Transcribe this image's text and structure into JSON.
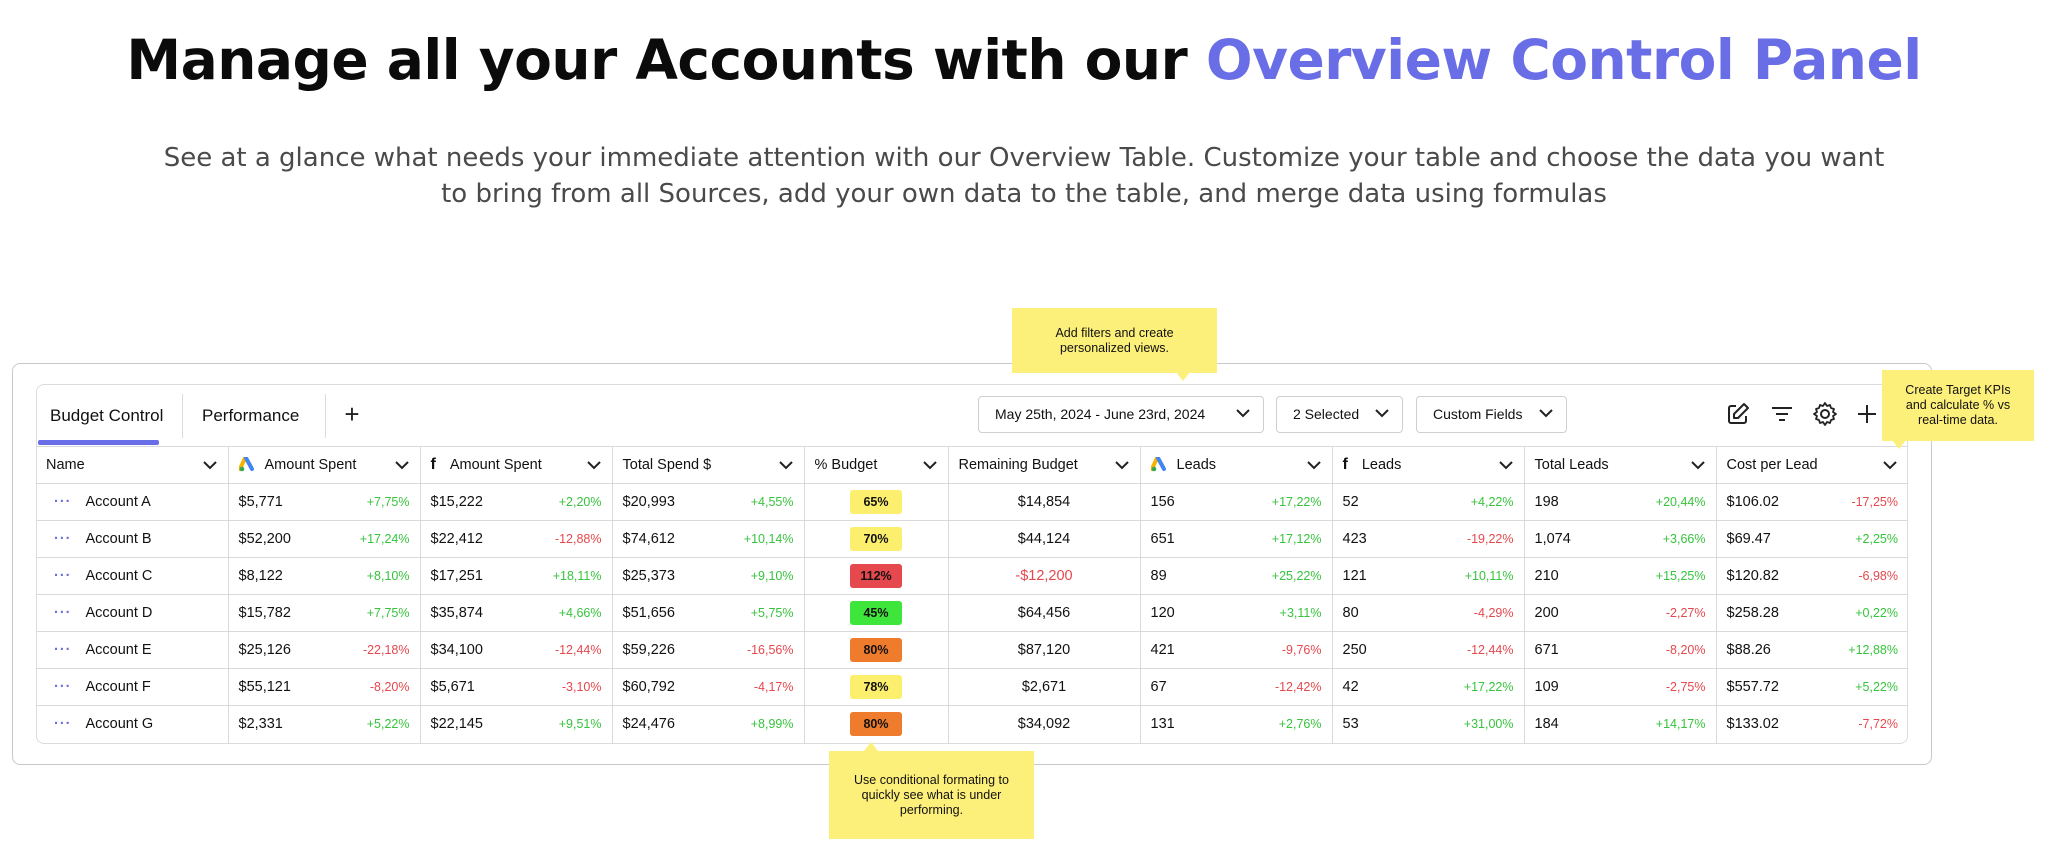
{
  "hero": {
    "title_main": "Manage all your Accounts with our ",
    "title_accent": "Overview Control Panel",
    "subtitle": "See at a glance what needs your immediate attention with our Overview Table. Customize your table and choose the data you want to bring from all Sources, add your own data to the table, and merge data using formulas"
  },
  "tabs": [
    {
      "label": "Budget Control",
      "active": true
    },
    {
      "label": "Performance",
      "active": false
    }
  ],
  "controls": {
    "date_range": "May 25th, 2024 - June 23rd, 2024",
    "selected": "2 Selected",
    "custom_fields": "Custom Fields"
  },
  "tooltips": {
    "filters": "Add filters and create personalized views.",
    "kpis": "Create Target KPIs and calculate % vs real-time data.",
    "formatting": "Use conditional formating to quickly see what is under performing."
  },
  "columns": [
    {
      "label": "Name",
      "icon": ""
    },
    {
      "label": "Amount Spent",
      "icon": "google-ads-icon"
    },
    {
      "label": "Amount Spent",
      "icon": "facebook-icon"
    },
    {
      "label": "Total Spend $",
      "icon": ""
    },
    {
      "label": "% Budget",
      "icon": ""
    },
    {
      "label": "Remaining Budget",
      "icon": ""
    },
    {
      "label": "Leads",
      "icon": "google-ads-icon"
    },
    {
      "label": "Leads",
      "icon": "facebook-icon"
    },
    {
      "label": "Total Leads",
      "icon": ""
    },
    {
      "label": "Cost per Lead",
      "icon": ""
    }
  ],
  "rows": [
    {
      "name": "Account A",
      "g_spent": "$5,771",
      "g_chg": "+7,75%",
      "f_spent": "$15,222",
      "f_chg": "+2,20%",
      "total": "$20,993",
      "total_chg": "+4,55%",
      "pct": "65%",
      "pct_color": "#fbef6d",
      "remaining": "$14,854",
      "remaining_neg": false,
      "g_leads": "156",
      "g_leads_chg": "+17,22%",
      "f_leads": "52",
      "f_leads_chg": "+4,22%",
      "total_leads": "198",
      "total_leads_chg": "+20,44%",
      "cpl": "$106.02",
      "cpl_chg": "-17,25%"
    },
    {
      "name": "Account B",
      "g_spent": "$52,200",
      "g_chg": "+17,24%",
      "f_spent": "$22,412",
      "f_chg": "-12,88%",
      "total": "$74,612",
      "total_chg": "+10,14%",
      "pct": "70%",
      "pct_color": "#fbef6d",
      "remaining": "$44,124",
      "remaining_neg": false,
      "g_leads": "651",
      "g_leads_chg": "+17,12%",
      "f_leads": "423",
      "f_leads_chg": "-19,22%",
      "total_leads": "1,074",
      "total_leads_chg": "+3,66%",
      "cpl": "$69.47",
      "cpl_chg": "+2,25%"
    },
    {
      "name": "Account C",
      "g_spent": "$8,122",
      "g_chg": "+8,10%",
      "f_spent": "$17,251",
      "f_chg": "+18,11%",
      "total": "$25,373",
      "total_chg": "+9,10%",
      "pct": "112%",
      "pct_color": "#e5484d",
      "remaining": "-$12,200",
      "remaining_neg": true,
      "g_leads": "89",
      "g_leads_chg": "+25,22%",
      "f_leads": "121",
      "f_leads_chg": "+10,11%",
      "total_leads": "210",
      "total_leads_chg": "+15,25%",
      "cpl": "$120.82",
      "cpl_chg": "-6,98%"
    },
    {
      "name": "Account D",
      "g_spent": "$15,782",
      "g_chg": "+7,75%",
      "f_spent": "$35,874",
      "f_chg": "+4,66%",
      "total": "$51,656",
      "total_chg": "+5,75%",
      "pct": "45%",
      "pct_color": "#3ee53a",
      "remaining": "$64,456",
      "remaining_neg": false,
      "g_leads": "120",
      "g_leads_chg": "+3,11%",
      "f_leads": "80",
      "f_leads_chg": "-4,29%",
      "total_leads": "200",
      "total_leads_chg": "-2,27%",
      "cpl": "$258.28",
      "cpl_chg": "+0,22%"
    },
    {
      "name": "Account E",
      "g_spent": "$25,126",
      "g_chg": "-22,18%",
      "f_spent": "$34,100",
      "f_chg": "-12,44%",
      "total": "$59,226",
      "total_chg": "-16,56%",
      "pct": "80%",
      "pct_color": "#ef7b2c",
      "remaining": "$87,120",
      "remaining_neg": false,
      "g_leads": "421",
      "g_leads_chg": "-9,76%",
      "f_leads": "250",
      "f_leads_chg": "-12,44%",
      "total_leads": "671",
      "total_leads_chg": "-8,20%",
      "cpl": "$88.26",
      "cpl_chg": "+12,88%"
    },
    {
      "name": "Account F",
      "g_spent": "$55,121",
      "g_chg": "-8,20%",
      "f_spent": "$5,671",
      "f_chg": "-3,10%",
      "total": "$60,792",
      "total_chg": "-4,17%",
      "pct": "78%",
      "pct_color": "#fbef6d",
      "remaining": "$2,671",
      "remaining_neg": false,
      "g_leads": "67",
      "g_leads_chg": "-12,42%",
      "f_leads": "42",
      "f_leads_chg": "+17,22%",
      "total_leads": "109",
      "total_leads_chg": "-2,75%",
      "cpl": "$557.72",
      "cpl_chg": "+5,22%"
    },
    {
      "name": "Account G",
      "g_spent": "$2,331",
      "g_chg": "+5,22%",
      "f_spent": "$22,145",
      "f_chg": "+9,51%",
      "total": "$24,476",
      "total_chg": "+8,99%",
      "pct": "80%",
      "pct_color": "#ef7b2c",
      "remaining": "$34,092",
      "remaining_neg": false,
      "g_leads": "131",
      "g_leads_chg": "+2,76%",
      "f_leads": "53",
      "f_leads_chg": "+31,00%",
      "total_leads": "184",
      "total_leads_chg": "+14,17%",
      "cpl": "$133.02",
      "cpl_chg": "-7,72%"
    }
  ],
  "colors": {
    "accent": "#6a6ee6",
    "positive": "#37c43d",
    "negative": "#e5484d",
    "tooltip": "#fdf07a"
  }
}
